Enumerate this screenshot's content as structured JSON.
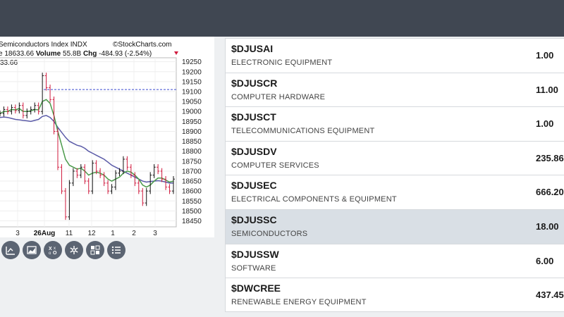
{
  "chart": {
    "title": "Semiconductors Index",
    "exchange": "INDX",
    "brand": "©StockCharts.com",
    "stats_prefix": "e",
    "stats_value": "18633.66",
    "volume_label": "Volume",
    "volume_value": "55.8B",
    "chg_label": "Chg",
    "chg_value": "-484.93 (-2.54%)",
    "price_tag": "33.66",
    "colors": {
      "up": "#111111",
      "down": "#d01b3e",
      "ma_short": "#4a9a4a",
      "ma_long": "#5b5ba8",
      "ref_line": "#3b4bd0"
    }
  },
  "chart_data": {
    "type": "candlestick",
    "title": "Semiconductors Index",
    "x_tick_labels": [
      "3",
      "26Aug",
      "11",
      "12",
      "1",
      "2",
      "3"
    ],
    "y_tick_labels": [
      19250,
      19200,
      19150,
      19100,
      19050,
      19000,
      18950,
      18900,
      18850,
      18800,
      18750,
      18700,
      18650,
      18600,
      18550,
      18500,
      18450
    ],
    "ylim": [
      18420,
      19270
    ],
    "reference_line": 19110,
    "last_price": 18633.66,
    "series": [
      {
        "name": "closes",
        "values": [
          18990,
          19010,
          19000,
          19020,
          19005,
          19030,
          18980,
          19000,
          19010,
          19030,
          19000,
          19180,
          19120,
          19060,
          18900,
          18720,
          18600,
          18470,
          18640,
          18700,
          18680,
          18720,
          18650,
          18600,
          18740,
          18700,
          18680,
          18640,
          18600,
          18620,
          18690,
          18700,
          18760,
          18720,
          18680,
          18640,
          18600,
          18540,
          18600,
          18680,
          18720,
          18700,
          18660,
          18620,
          18600,
          18660
        ]
      },
      {
        "name": "ma_short",
        "values": [
          18990,
          19000,
          19000,
          19010,
          19008,
          19015,
          19000,
          19000,
          19003,
          19010,
          19008,
          19050,
          19060,
          19040,
          18980,
          18900,
          18830,
          18760,
          18730,
          18720,
          18710,
          18715,
          18700,
          18680,
          18690,
          18695,
          18690,
          18680,
          18660,
          18650,
          18660,
          18670,
          18690,
          18700,
          18695,
          18680,
          18660,
          18630,
          18620,
          18630,
          18650,
          18665,
          18665,
          18655,
          18645,
          18650
        ]
      },
      {
        "name": "ma_long",
        "values": [
          18970,
          18972,
          18970,
          18965,
          18960,
          18958,
          18955,
          18953,
          18950,
          18955,
          18960,
          18975,
          18980,
          18970,
          18950,
          18920,
          18895,
          18870,
          18850,
          18840,
          18830,
          18825,
          18815,
          18800,
          18790,
          18780,
          18770,
          18760,
          18745,
          18730,
          18720,
          18710,
          18700,
          18690,
          18680,
          18670,
          18660,
          18650,
          18645,
          18648,
          18650,
          18652,
          18650,
          18645,
          18640,
          18640
        ]
      }
    ]
  },
  "toolbar": {
    "items": [
      {
        "name": "chart-type-icon"
      },
      {
        "name": "area-chart-icon"
      },
      {
        "name": "pnf-icon"
      },
      {
        "name": "settings-snowflake-icon"
      },
      {
        "name": "compare-icon"
      },
      {
        "name": "list-icon"
      }
    ]
  },
  "industries": [
    {
      "symbol": "$DJUSAI",
      "name": "ELECTRONIC EQUIPMENT",
      "value": "1.00",
      "selected": false
    },
    {
      "symbol": "$DJUSCR",
      "name": "COMPUTER HARDWARE",
      "value": "11.00",
      "selected": false
    },
    {
      "symbol": "$DJUSCT",
      "name": "TELECOMMUNICATIONS EQUIPMENT",
      "value": "1.00",
      "selected": false
    },
    {
      "symbol": "$DJUSDV",
      "name": "COMPUTER SERVICES",
      "value": "235.86",
      "selected": false
    },
    {
      "symbol": "$DJUSEC",
      "name": "ELECTRICAL COMPONENTS & EQUIPMENT",
      "value": "666.20",
      "selected": false
    },
    {
      "symbol": "$DJUSSC",
      "name": "SEMICONDUCTORS",
      "value": "18.00",
      "selected": true
    },
    {
      "symbol": "$DJUSSW",
      "name": "SOFTWARE",
      "value": "6.00",
      "selected": false
    },
    {
      "symbol": "$DWCREE",
      "name": "RENEWABLE ENERGY EQUIPMENT",
      "value": "437.45",
      "selected": false
    }
  ]
}
